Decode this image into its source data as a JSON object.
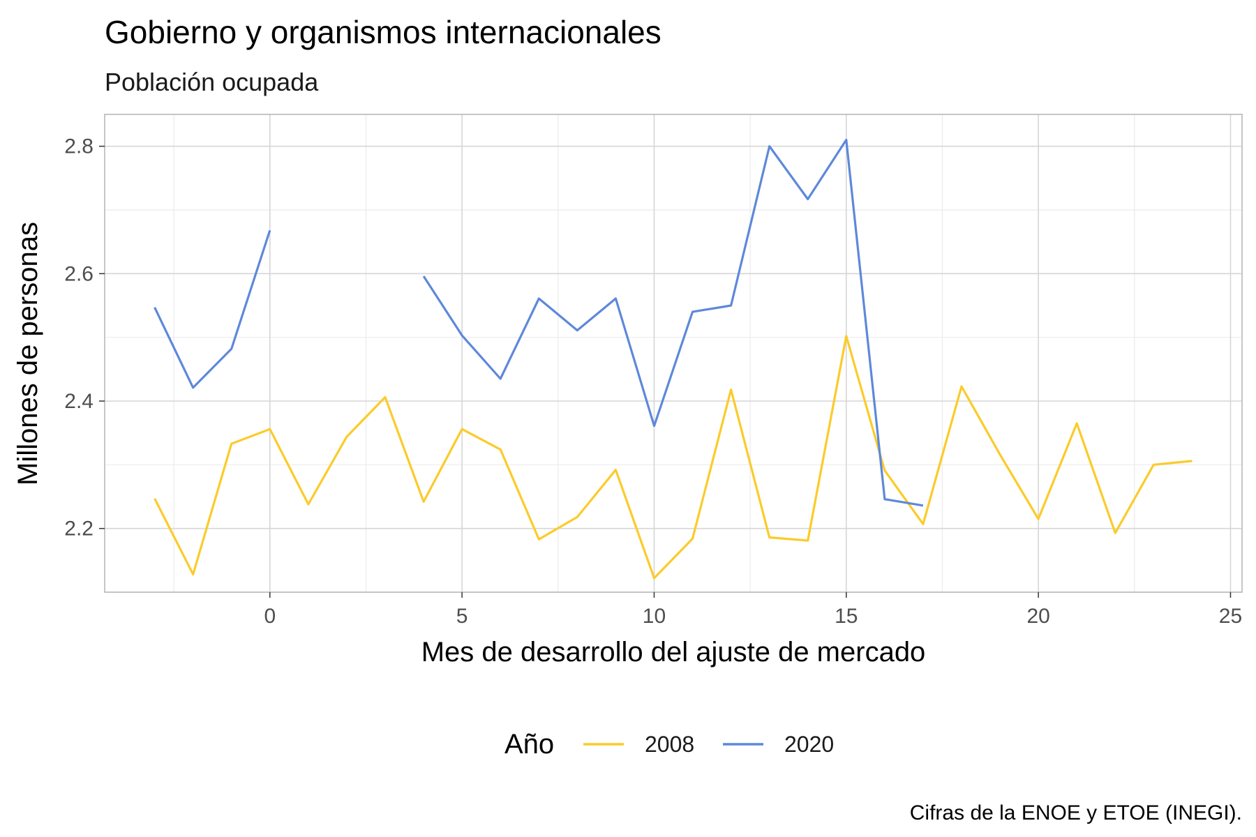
{
  "chart_data": {
    "type": "line",
    "title": "Gobierno y organismos internacionales",
    "subtitle": "Población ocupada",
    "xlabel": "Mes de desarrollo del ajuste de mercado",
    "ylabel": "Millones de personas",
    "caption": "Cifras de la ENOE y ETOE (INEGI).",
    "xlim": [
      -4.3,
      25.3
    ],
    "ylim": [
      2.1,
      2.85
    ],
    "xticks": [
      0,
      5,
      10,
      15,
      20,
      25
    ],
    "yticks": [
      2.2,
      2.4,
      2.6,
      2.8
    ],
    "grid": true,
    "legend": {
      "title": "Año",
      "position": "bottom"
    },
    "series": [
      {
        "name": "2008",
        "color": "#FBCB2A",
        "points": [
          [
            -3,
            2.247
          ],
          [
            -2,
            2.128
          ],
          [
            -1,
            2.333
          ],
          [
            0,
            2.356
          ],
          [
            1,
            2.238
          ],
          [
            2,
            2.344
          ],
          [
            3,
            2.406
          ],
          [
            4,
            2.242
          ],
          [
            5,
            2.356
          ],
          [
            6,
            2.324
          ],
          [
            7,
            2.183
          ],
          [
            8,
            2.218
          ],
          [
            9,
            2.292
          ],
          [
            10,
            2.122
          ],
          [
            11,
            2.184
          ],
          [
            12,
            2.418
          ],
          [
            13,
            2.186
          ],
          [
            14,
            2.181
          ],
          [
            15,
            2.502
          ],
          [
            16,
            2.291
          ],
          [
            17,
            2.207
          ],
          [
            18,
            2.423
          ],
          [
            19,
            2.316
          ],
          [
            20,
            2.215
          ],
          [
            21,
            2.365
          ],
          [
            22,
            2.193
          ],
          [
            23,
            2.3
          ],
          [
            24,
            2.306
          ]
        ]
      },
      {
        "name": "2020",
        "color": "#5E88DA",
        "points": [
          [
            -3,
            2.547
          ],
          [
            -2,
            2.421
          ],
          [
            -1,
            2.482
          ],
          [
            0,
            2.668
          ],
          [
            1,
            null
          ],
          [
            2,
            null
          ],
          [
            3,
            null
          ],
          [
            4,
            2.596
          ],
          [
            5,
            2.503
          ],
          [
            6,
            2.435
          ],
          [
            7,
            2.561
          ],
          [
            8,
            2.511
          ],
          [
            9,
            2.561
          ],
          [
            10,
            2.361
          ],
          [
            11,
            2.54
          ],
          [
            12,
            2.55
          ],
          [
            13,
            2.8
          ],
          [
            14,
            2.717
          ],
          [
            15,
            2.81
          ],
          [
            16,
            2.246
          ],
          [
            17,
            2.236
          ]
        ]
      }
    ]
  }
}
